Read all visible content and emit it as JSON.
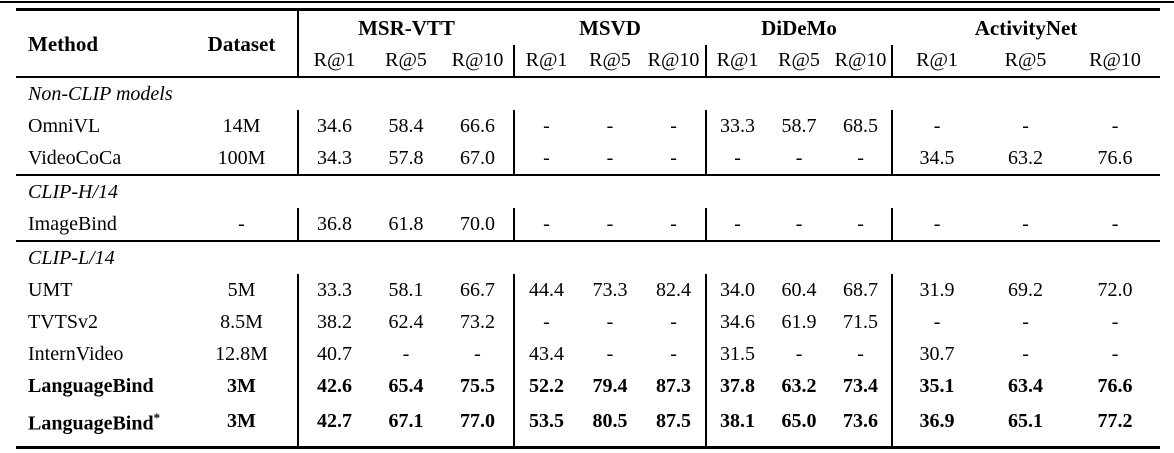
{
  "page": {
    "background": "#ffffff",
    "text_color": "#000000",
    "rule_color": "#000000"
  },
  "table": {
    "header": {
      "method": "Method",
      "dataset": "Dataset"
    },
    "groups": [
      {
        "name": "MSR-VTT",
        "metrics": [
          "R@1",
          "R@5",
          "R@10"
        ]
      },
      {
        "name": "MSVD",
        "metrics": [
          "R@1",
          "R@5",
          "R@10"
        ]
      },
      {
        "name": "DiDeMo",
        "metrics": [
          "R@1",
          "R@5",
          "R@10"
        ]
      },
      {
        "name": "ActivityNet",
        "metrics": [
          "R@1",
          "R@5",
          "R@10"
        ]
      }
    ],
    "rows": [
      {
        "type": "section",
        "label": "Non-CLIP models"
      },
      {
        "type": "data",
        "method": "OmniVL",
        "dataset": "14M",
        "bold": false,
        "values": [
          "34.6",
          "58.4",
          "66.6",
          "-",
          "-",
          "-",
          "33.3",
          "58.7",
          "68.5",
          "-",
          "-",
          "-"
        ]
      },
      {
        "type": "data",
        "method": "VideoCoCa",
        "dataset": "100M",
        "bold": false,
        "values": [
          "34.3",
          "57.8",
          "67.0",
          "-",
          "-",
          "-",
          "-",
          "-",
          "-",
          "34.5",
          "63.2",
          "76.6"
        ]
      },
      {
        "type": "section",
        "label": "CLIP-H/14",
        "rule_above": true
      },
      {
        "type": "data",
        "method": "ImageBind",
        "dataset": "-",
        "bold": false,
        "values": [
          "36.8",
          "61.8",
          "70.0",
          "-",
          "-",
          "-",
          "-",
          "-",
          "-",
          "-",
          "-",
          "-"
        ]
      },
      {
        "type": "section",
        "label": "CLIP-L/14",
        "rule_above": true
      },
      {
        "type": "data",
        "method": "UMT",
        "dataset": "5M",
        "bold": false,
        "values": [
          "33.3",
          "58.1",
          "66.7",
          "44.4",
          "73.3",
          "82.4",
          "34.0",
          "60.4",
          "68.7",
          "31.9",
          "69.2",
          "72.0"
        ]
      },
      {
        "type": "data",
        "method": "TVTSv2",
        "dataset": "8.5M",
        "bold": false,
        "values": [
          "38.2",
          "62.4",
          "73.2",
          "-",
          "-",
          "-",
          "34.6",
          "61.9",
          "71.5",
          "-",
          "-",
          "-"
        ]
      },
      {
        "type": "data",
        "method": "InternVideo",
        "dataset": "12.8M",
        "bold": false,
        "values": [
          "40.7",
          "-",
          "-",
          "43.4",
          "-",
          "-",
          "31.5",
          "-",
          "-",
          "30.7",
          "-",
          "-"
        ]
      },
      {
        "type": "data",
        "method": "LanguageBind",
        "dataset": "3M",
        "bold": true,
        "values": [
          "42.6",
          "65.4",
          "75.5",
          "52.2",
          "79.4",
          "87.3",
          "37.8",
          "63.2",
          "73.4",
          "35.1",
          "63.4",
          "76.6"
        ]
      },
      {
        "type": "data",
        "method": "LanguageBind",
        "method_sup": "*",
        "dataset": "3M",
        "bold": true,
        "values": [
          "42.7",
          "67.1",
          "77.0",
          "53.5",
          "80.5",
          "87.5",
          "38.1",
          "65.0",
          "73.6",
          "36.9",
          "65.1",
          "77.2"
        ]
      }
    ]
  }
}
